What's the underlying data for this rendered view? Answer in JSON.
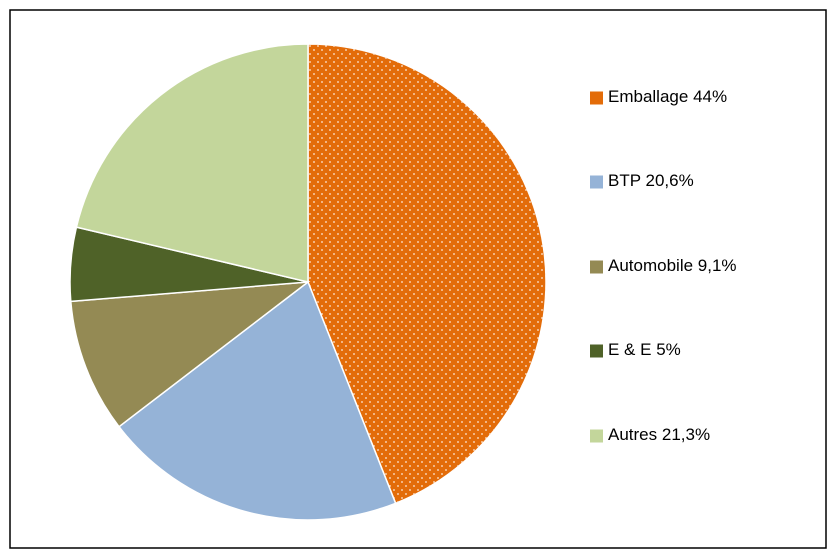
{
  "chart_data": {
    "type": "pie",
    "categories": [
      "Emballage",
      "BTP",
      "Automobile",
      "E & E",
      "Autres"
    ],
    "values": [
      44,
      20.6,
      9.1,
      5,
      21.3
    ],
    "value_labels": [
      "44%",
      "20,6%",
      "9,1%",
      "5%",
      "21,3%"
    ],
    "colors": [
      "#e36c09",
      "#95b3d7",
      "#948a54",
      "#4f6228",
      "#c3d69b"
    ],
    "patterns": [
      "dots",
      null,
      null,
      null,
      null
    ],
    "legend": "right"
  }
}
